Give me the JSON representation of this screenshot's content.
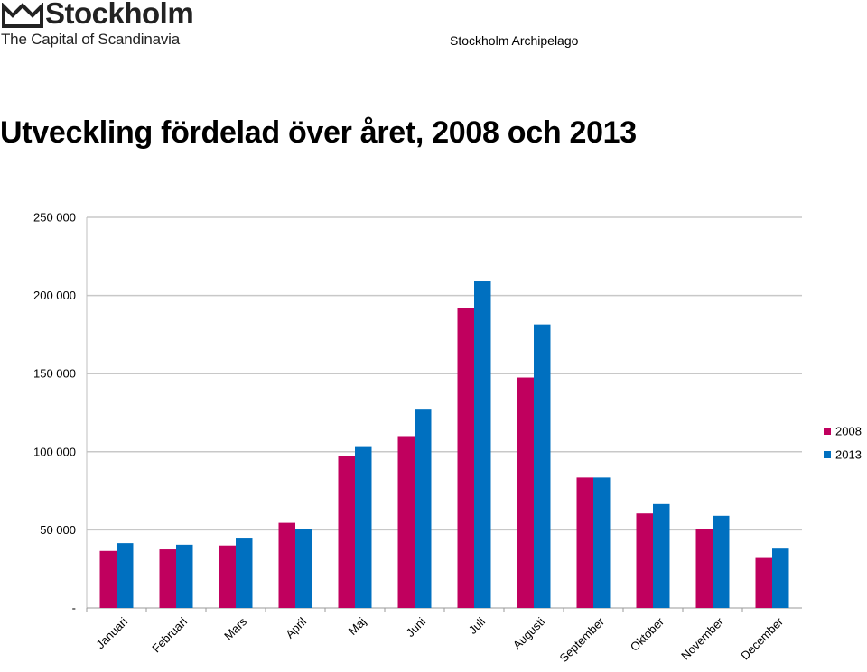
{
  "header": {
    "logo_name": "Stockholm",
    "logo_tagline": "The Capital of Scandinavia",
    "right_text": "Stockholm Archipelago"
  },
  "chart_data": {
    "type": "bar",
    "title": "Utveckling fördelad över året, 2008 och 2013",
    "xlabel": "",
    "ylabel": "",
    "categories": [
      "Januari",
      "Februari",
      "Mars",
      "April",
      "Maj",
      "Juni",
      "Juli",
      "Augusti",
      "September",
      "Oktober",
      "November",
      "December"
    ],
    "series": [
      {
        "name": "2008",
        "color": "#c0005e",
        "values": [
          36500,
          37500,
          40000,
          54500,
          97000,
          110000,
          192000,
          147500,
          83500,
          60500,
          50500,
          32000
        ]
      },
      {
        "name": "2013",
        "color": "#0070c0",
        "values": [
          41500,
          40500,
          45000,
          50500,
          103000,
          127500,
          209000,
          181500,
          83500,
          66500,
          59000,
          38000
        ]
      }
    ],
    "ylim": [
      0,
      250000
    ],
    "y_ticks": [
      {
        "value": 0,
        "label": "-"
      },
      {
        "value": 50000,
        "label": "50 000"
      },
      {
        "value": 100000,
        "label": "100 000"
      },
      {
        "value": 150000,
        "label": "150 000"
      },
      {
        "value": 200000,
        "label": "200 000"
      },
      {
        "value": 250000,
        "label": "250 000"
      }
    ],
    "grid": true,
    "legend": "right"
  }
}
